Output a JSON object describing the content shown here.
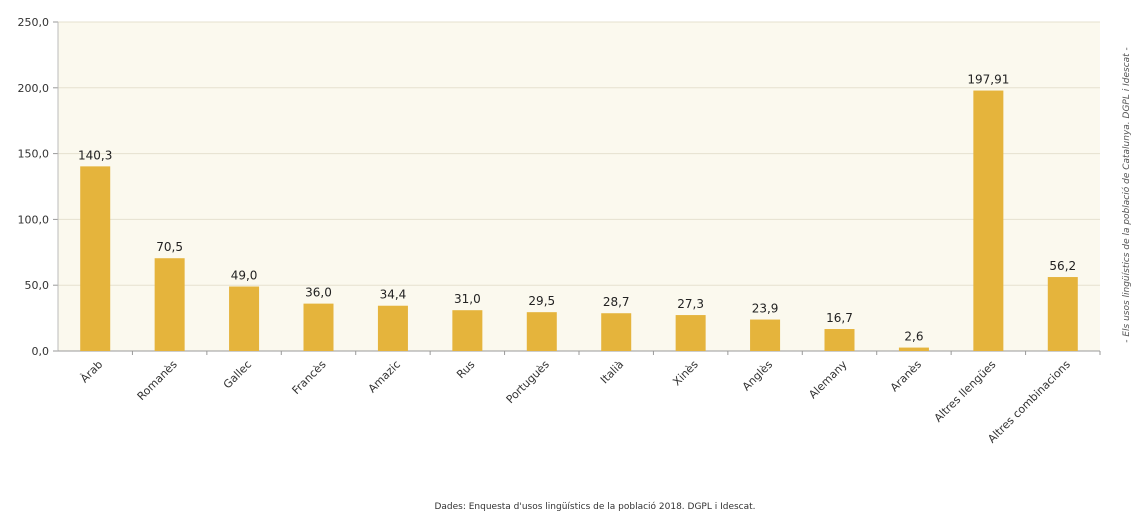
{
  "chart_data": {
    "type": "bar",
    "categories": [
      "Àrab",
      "Romanès",
      "Gallec",
      "Francès",
      "Amazic",
      "Rus",
      "Portuguès",
      "Italià",
      "Xinès",
      "Anglès",
      "Alemany",
      "Aranès",
      "Altres llengües",
      "Altres combinacions"
    ],
    "values": [
      140.3,
      70.5,
      49.0,
      36.0,
      34.4,
      31.0,
      29.5,
      28.7,
      27.3,
      23.9,
      16.7,
      2.6,
      197.91,
      56.2
    ],
    "value_labels": [
      "140,3",
      "70,5",
      "49,0",
      "36,0",
      "34,4",
      "31,0",
      "29,5",
      "28,7",
      "27,3",
      "23,9",
      "16,7",
      "2,6",
      "197,91",
      "56,2"
    ],
    "y_ticks": [
      "0,0",
      "50,0",
      "100,0",
      "150,0",
      "200,0",
      "250,0"
    ],
    "ylim": [
      0,
      250
    ],
    "grid": true,
    "bar_color": "#E5B43C",
    "source": "Dades: Enquesta d'usos lingüístics de la població 2018. DGPL i Idescat.",
    "side_note": "- Els usos lingüístics de la població de Catalunya. DGPL i Idescat -"
  }
}
